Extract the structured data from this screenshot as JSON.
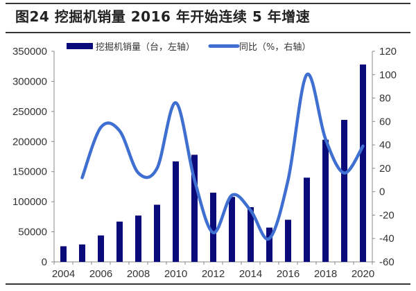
{
  "title": "图24 挖掘机销量 2016 年开始连续 5 年增速",
  "legend": {
    "bar_label": "挖掘机销量（台，左轴）",
    "line_label": "同比（%，右轴）"
  },
  "colors": {
    "bar": "#0a0a7a",
    "line": "#3f6fd0",
    "axis": "#888888",
    "text": "#333333"
  },
  "chart_data": {
    "type": "bar+line",
    "title": "图24 挖掘机销量 2016 年开始连续 5 年增速",
    "categories": [
      "2004",
      "2005",
      "2006",
      "2007",
      "2008",
      "2009",
      "2010",
      "2011",
      "2012",
      "2013",
      "2014",
      "2015",
      "2016",
      "2017",
      "2018",
      "2019",
      "2020"
    ],
    "x_tick_labels": [
      "2004",
      "2006",
      "2008",
      "2010",
      "2012",
      "2014",
      "2016",
      "2018",
      "2020"
    ],
    "series": [
      {
        "name": "挖掘机销量（台，左轴）",
        "type": "bar",
        "axis": "left",
        "values": [
          26000,
          29000,
          44000,
          67000,
          77000,
          95000,
          167000,
          178000,
          115000,
          108000,
          91000,
          57000,
          70000,
          140000,
          203000,
          236000,
          328000
        ]
      },
      {
        "name": "同比（%，右轴）",
        "type": "line",
        "axis": "right",
        "values": [
          null,
          12,
          55,
          52,
          16,
          20,
          76,
          10,
          -35,
          -3,
          -16,
          -40,
          10,
          100,
          45,
          16,
          39
        ]
      }
    ],
    "left_axis": {
      "min": 0,
      "max": 350000,
      "ticks": [
        "0",
        "50000",
        "100000",
        "150000",
        "200000",
        "250000",
        "300000",
        "350000"
      ]
    },
    "right_axis": {
      "min": -60,
      "max": 120,
      "ticks": [
        "-60",
        "-40",
        "-20",
        "0",
        "20",
        "40",
        "60",
        "80",
        "100",
        "120"
      ]
    },
    "xlabel": "",
    "ylabel_left": "",
    "ylabel_right": "",
    "grid": false,
    "legend_position": "top"
  }
}
